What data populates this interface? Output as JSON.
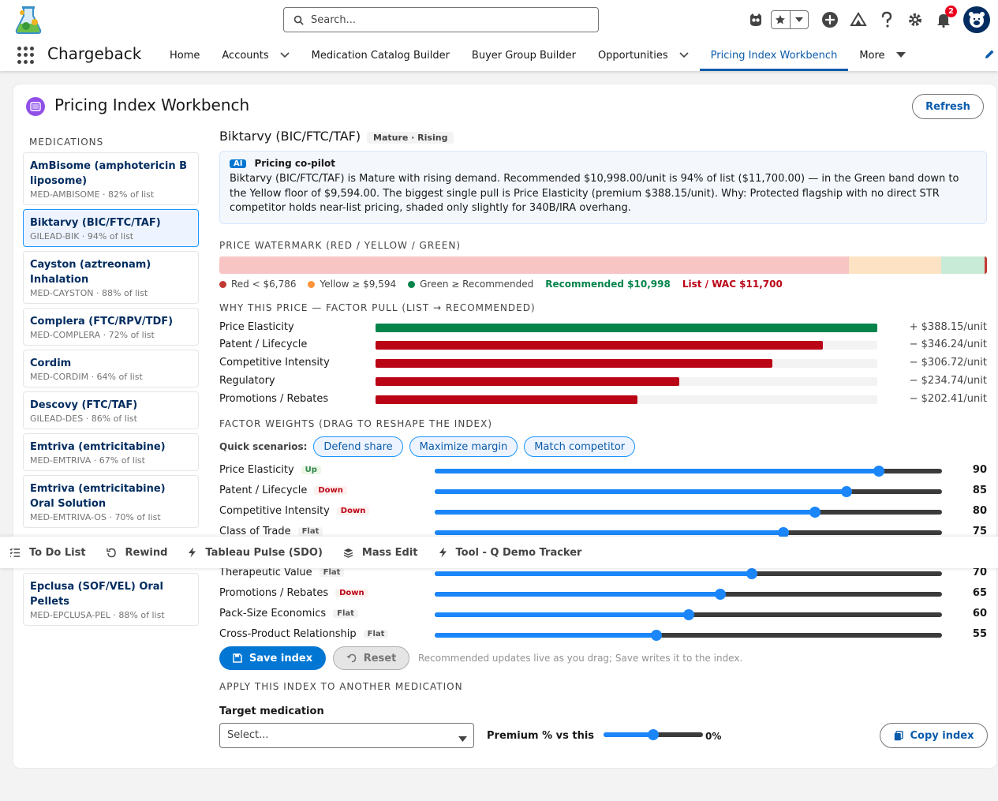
{
  "header": {
    "search_placeholder": "Search...",
    "notification_count": "2"
  },
  "nav": {
    "app_name": "Chargeback",
    "items": [
      {
        "label": "Home"
      },
      {
        "label": "Accounts"
      },
      {
        "label": "Medication Catalog Builder"
      },
      {
        "label": "Buyer Group Builder"
      },
      {
        "label": "Opportunities"
      },
      {
        "label": "Pricing Index Workbench"
      },
      {
        "label": "More"
      }
    ]
  },
  "page": {
    "title": "Pricing Index Workbench",
    "refresh_label": "Refresh"
  },
  "sidebar": {
    "heading": "MEDICATIONS",
    "items": [
      {
        "name": "AmBisome (amphotericin B liposome)",
        "meta": "MED-AMBISOME · 82% of list"
      },
      {
        "name": "Biktarvy (BIC/FTC/TAF)",
        "meta": "GILEAD-BIK · 94% of list"
      },
      {
        "name": "Cayston (aztreonam) Inhalation",
        "meta": "MED-CAYSTON · 88% of list"
      },
      {
        "name": "Complera (FTC/RPV/TDF)",
        "meta": "MED-COMPLERA · 72% of list"
      },
      {
        "name": "Cordim",
        "meta": "MED-CORDIM · 64% of list"
      },
      {
        "name": "Descovy (FTC/TAF)",
        "meta": "GILEAD-DES · 86% of list"
      },
      {
        "name": "Emtriva (emtricitabine)",
        "meta": "MED-EMTRIVA · 67% of list"
      },
      {
        "name": "Emtriva (emtricitabine) Oral Solution",
        "meta": "MED-EMTRIVA-OS · 70% of list"
      },
      {
        "name": "Epclusa (SOF/VEL) Oral Pellets",
        "meta": "MED-EPCLUSA-PEL · 88% of list"
      }
    ]
  },
  "detail": {
    "title": "Biktarvy (BIC/FTC/TAF)",
    "stage": "Mature · Rising",
    "copilot": {
      "badge": "AI",
      "title": "Pricing co-pilot",
      "text": "Biktarvy (BIC/FTC/TAF) is Mature with rising demand. Recommended $10,998.00/unit is 94% of list ($11,700.00) — in the Green band down to the Yellow floor of $9,594.00. The biggest single pull is Price Elasticity (premium $388.15/unit). Why: Protected flagship with no direct STR competitor holds near-list pricing, shaded only slightly for 340B/IRA overhang."
    },
    "watermark": {
      "label": "PRICE WATERMARK (RED / YELLOW / GREEN)",
      "red_floor": 6786,
      "yellow_floor": 9594,
      "recommended": 10998,
      "list": 11700,
      "colors": {
        "red": "#f8c5c5",
        "yellow": "#fde3c4",
        "green": "#c8ebd7",
        "recommended_tick": "#04844b",
        "list_tick": "#c23934"
      },
      "legend": [
        {
          "label": "Red < $6,786",
          "color": "#c23934"
        },
        {
          "label": "Yellow ≥ $9,594",
          "color": "#fe9339"
        },
        {
          "label": "Green ≥ Recommended",
          "color": "#04844b"
        }
      ],
      "recommended_label": "Recommended $10,998",
      "list_label": "List / WAC $11,700"
    },
    "factor_pull": {
      "label": "WHY THIS PRICE — FACTOR PULL (LIST → RECOMMENDED)",
      "positive_color": "#04844b",
      "negative_color": "#ba0517",
      "factors": [
        {
          "name": "Price Elasticity",
          "amount": 388.15,
          "value_text": "+ $388.15/unit"
        },
        {
          "name": "Patent / Lifecycle",
          "amount": -346.24,
          "value_text": "− $346.24/unit"
        },
        {
          "name": "Competitive Intensity",
          "amount": -306.72,
          "value_text": "− $306.72/unit"
        },
        {
          "name": "Regulatory",
          "amount": -234.74,
          "value_text": "− $234.74/unit"
        },
        {
          "name": "Promotions / Rebates",
          "amount": -202.41,
          "value_text": "− $202.41/unit"
        }
      ]
    },
    "weights": {
      "label": "FACTOR WEIGHTS (DRAG TO RESHAPE THE INDEX)",
      "quick_label": "Quick scenarios:",
      "scenarios": [
        "Defend share",
        "Maximize margin",
        "Match competitor"
      ],
      "items": [
        {
          "name": "Price Elasticity",
          "trend": "Up",
          "value": 90
        },
        {
          "name": "Patent / Lifecycle",
          "trend": "Down",
          "value": 85
        },
        {
          "name": "Competitive Intensity",
          "trend": "Down",
          "value": 80
        },
        {
          "name": "Class of Trade",
          "trend": "Flat",
          "value": 75
        },
        {
          "name": "Therapeutic Value",
          "trend": "Flat",
          "value": 70
        },
        {
          "name": "Promotions / Rebates",
          "trend": "Down",
          "value": 65
        },
        {
          "name": "Pack-Size Economics",
          "trend": "Flat",
          "value": 60
        },
        {
          "name": "Cross-Product Relationship",
          "trend": "Flat",
          "value": 55
        }
      ]
    },
    "actions": {
      "save_label": "Save index",
      "reset_label": "Reset",
      "note": "Recommended updates live as you drag; Save writes it to the index."
    },
    "apply": {
      "label": "APPLY THIS INDEX TO ANOTHER MEDICATION",
      "target_label": "Target medication",
      "target_value": "Select...",
      "premium_label": "Premium % vs this",
      "premium_value": 0,
      "premium_text": "0%",
      "copy_label": "Copy index"
    }
  },
  "utility_bar": {
    "items": [
      {
        "label": "To Do List",
        "icon": "checklist-icon"
      },
      {
        "label": "Rewind",
        "icon": "rewind-icon"
      },
      {
        "label": "Tableau Pulse (SDO)",
        "icon": "bolt-icon"
      },
      {
        "label": "Mass Edit",
        "icon": "layers-icon"
      },
      {
        "label": "Tool - Q Demo Tracker",
        "icon": "bolt-icon"
      }
    ]
  }
}
